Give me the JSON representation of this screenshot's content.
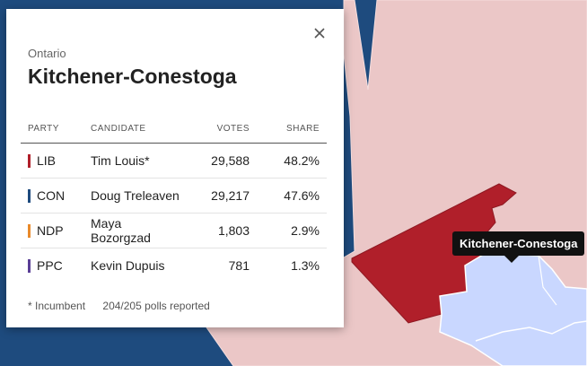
{
  "panel": {
    "province": "Ontario",
    "riding": "Kitchener-Conestoga",
    "columns": {
      "party": "PARTY",
      "candidate": "CANDIDATE",
      "votes": "VOTES",
      "share": "SHARE"
    },
    "rows": [
      {
        "party": "LIB",
        "candidate": "Tim Louis*",
        "votes": "29,588",
        "share": "48.2%",
        "color": "#b01f2a"
      },
      {
        "party": "CON",
        "candidate": "Doug Treleaven",
        "votes": "29,217",
        "share": "47.6%",
        "color": "#1e4b7e"
      },
      {
        "party": "NDP",
        "candidate": "Maya Bozorgzad",
        "votes": "1,803",
        "share": "2.9%",
        "color": "#e98a2b"
      },
      {
        "party": "PPC",
        "candidate": "Kevin Dupuis",
        "votes": "781",
        "share": "1.3%",
        "color": "#5a3e96"
      }
    ],
    "footer": {
      "incumbent_note": "* Incumbent",
      "polls": "204/205 polls reported"
    }
  },
  "tooltip": {
    "label": "Kitchener-Conestoga"
  },
  "map_colors": {
    "conservative": "#1e4b7e",
    "liberal_light": "#ebc7c7",
    "liberal_selected": "#b01f2a",
    "highlight": "#c9d7ff"
  },
  "icons": {
    "close": "close-icon"
  }
}
